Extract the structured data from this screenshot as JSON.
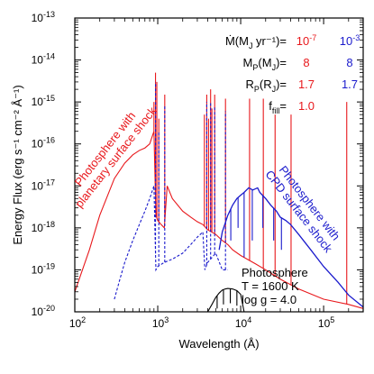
{
  "chart_data": {
    "type": "line",
    "title": "",
    "xlabel": "Wavelength (Å)",
    "ylabel": "Energy Flux (erg s⁻¹ cm⁻² Å⁻¹)",
    "xscale": "log",
    "yscale": "log",
    "xlim": [
      100,
      300000
    ],
    "ylim": [
      1e-20,
      1e-13
    ],
    "grid": false,
    "x_ticks": [
      {
        "value": 100,
        "mant": "10",
        "exp": "2"
      },
      {
        "value": 1000,
        "mant": "10",
        "exp": "3"
      },
      {
        "value": 10000,
        "mant": "10",
        "exp": "4"
      },
      {
        "value": 100000,
        "mant": "10",
        "exp": "5"
      }
    ],
    "y_ticks": [
      {
        "value": 1e-13,
        "mant": "10",
        "exp": "-13"
      },
      {
        "value": 1e-14,
        "mant": "10",
        "exp": "-14"
      },
      {
        "value": 1e-15,
        "mant": "10",
        "exp": "-15"
      },
      {
        "value": 1e-16,
        "mant": "10",
        "exp": "-16"
      },
      {
        "value": 1e-17,
        "mant": "10",
        "exp": "-17"
      },
      {
        "value": 1e-18,
        "mant": "10",
        "exp": "-18"
      },
      {
        "value": 1e-19,
        "mant": "10",
        "exp": "-19"
      },
      {
        "value": 1e-20,
        "mant": "10",
        "exp": "-20"
      }
    ],
    "series": [
      {
        "color": "#e8181c",
        "style": "solid",
        "x": [
          100,
          150,
          200,
          300,
          400,
          500,
          600,
          700,
          800,
          900,
          950,
          1000,
          1100,
          1200,
          1300,
          1500,
          2000,
          2500,
          3000,
          3500,
          4000,
          5000,
          6000,
          7000,
          8000,
          10000,
          15000,
          20000,
          30000,
          50000,
          100000,
          200000,
          300000
        ],
        "y": [
          3e-20,
          3e-19,
          2e-18,
          1.5e-17,
          3.5e-17,
          5.5e-17,
          7e-17,
          8e-17,
          1e-16,
          2e-16,
          2e-18,
          1.5e-18,
          1.2e-18,
          1e-18,
          1e-17,
          5e-18,
          2.5e-18,
          1.8e-18,
          1.4e-18,
          1.2e-18,
          9e-19,
          7e-19,
          5e-19,
          4e-19,
          3e-19,
          2.2e-19,
          1.4e-19,
          1e-19,
          6e-20,
          3.5e-20,
          2e-20,
          1.5e-20,
          1.2e-20
        ],
        "peaks": [
          {
            "x": 900,
            "y": 1e-15
          },
          {
            "x": 940,
            "y": 5e-15
          },
          {
            "x": 975,
            "y": 3e-15
          },
          {
            "x": 1030,
            "y": 4e-16
          },
          {
            "x": 1215,
            "y": 1.5e-15
          },
          {
            "x": 3650,
            "y": 5e-16
          },
          {
            "x": 3900,
            "y": 1.5e-15
          },
          {
            "x": 4100,
            "y": 4e-16
          },
          {
            "x": 4340,
            "y": 2e-15
          },
          {
            "x": 4500,
            "y": 7e-16
          },
          {
            "x": 4860,
            "y": 1.5e-15
          },
          {
            "x": 6560,
            "y": 1.2e-15
          },
          {
            "x": 12800,
            "y": 1.2e-15
          },
          {
            "x": 18750,
            "y": 1.2e-15
          },
          {
            "x": 26000,
            "y": 5e-16
          },
          {
            "x": 40500,
            "y": 5e-16
          },
          {
            "x": 190000,
            "y": 1e-15
          }
        ]
      },
      {
        "color": "#1a1acc",
        "style": "dashed",
        "x": [
          300,
          350,
          400,
          500,
          600,
          700,
          800,
          900,
          950,
          1000,
          1200,
          1500,
          2000,
          2500,
          3000,
          3500,
          3700,
          4000,
          5000,
          6000,
          7000
        ],
        "y": [
          2e-20,
          6e-20,
          1.5e-19,
          5e-19,
          1.2e-18,
          2.5e-18,
          5e-18,
          1e-17,
          1e-19,
          1.2e-19,
          1.5e-19,
          1.8e-19,
          2.5e-19,
          4e-19,
          6e-19,
          8e-19,
          1e-19,
          1.5e-19,
          2.5e-19,
          1e-19,
          1e-19
        ],
        "peaks": [
          {
            "x": 940,
            "y": 3e-15
          },
          {
            "x": 1030,
            "y": 2e-16
          },
          {
            "x": 1215,
            "y": 8e-16
          },
          {
            "x": 3900,
            "y": 1e-15
          },
          {
            "x": 4340,
            "y": 1e-15
          },
          {
            "x": 4860,
            "y": 8e-16
          },
          {
            "x": 6560,
            "y": 6e-16
          }
        ]
      },
      {
        "color": "#1a1acc",
        "style": "solid",
        "x": [
          5500,
          6000,
          7000,
          8000,
          9000,
          10000,
          11000,
          12500,
          14000,
          16000,
          17000,
          20000,
          23000,
          27000,
          30000,
          35000,
          40000,
          50000,
          70000,
          100000,
          150000,
          200000,
          300000
        ],
        "y": [
          3e-19,
          8e-19,
          2e-18,
          3.5e-18,
          5e-18,
          6e-18,
          7e-18,
          9e-18,
          8e-18,
          9e-18,
          7e-18,
          5e-18,
          3.5e-18,
          2.5e-18,
          1.8e-18,
          1.5e-18,
          1.2e-18,
          7e-19,
          3e-19,
          1.2e-19,
          5e-20,
          2.5e-20,
          1.3e-20
        ],
        "absorption": [
          {
            "x": 7600,
            "y": 5e-19
          },
          {
            "x": 9300,
            "y": 1e-18
          },
          {
            "x": 11000,
            "y": 2e-19
          },
          {
            "x": 13800,
            "y": 5e-19
          },
          {
            "x": 18500,
            "y": 1e-18
          },
          {
            "x": 25000,
            "y": 5e-19
          },
          {
            "x": 31000,
            "y": 3e-19
          }
        ]
      },
      {
        "color": "#000000",
        "style": "solid",
        "x": [
          4000,
          4500,
          5000,
          5500,
          6000,
          6500,
          7000,
          8000,
          9000,
          10000,
          11000
        ],
        "y": [
          1e-20,
          1.5e-20,
          2.2e-20,
          2.8e-20,
          3.3e-20,
          3.5e-20,
          3.6e-20,
          3.5e-20,
          3.2e-20,
          2.6e-20,
          1e-20
        ],
        "absorption": [
          {
            "x": 5200,
            "y": 1.2e-20
          },
          {
            "x": 6200,
            "y": 1.5e-20
          },
          {
            "x": 7500,
            "y": 1.6e-20
          },
          {
            "x": 9000,
            "y": 1.4e-20
          }
        ]
      }
    ],
    "annotations": [
      {
        "id": "planetary",
        "lines": [
          "Photosphere with",
          "planetary surface shock"
        ],
        "color": "#e8181c"
      },
      {
        "id": "cpd",
        "lines": [
          "Photosphere with",
          "CPD surface shock"
        ],
        "color": "#1a1acc"
      },
      {
        "id": "photosphere",
        "lines": [
          "Photosphere",
          "T = 1600 K",
          "log g = 4.0"
        ],
        "color": "#000000"
      }
    ],
    "legend": {
      "position": "top-right",
      "rows": [
        {
          "label": "Ṁ(M",
          "sub": "J",
          "tail": " yr⁻¹)=",
          "red": "10",
          "red_exp": "-7",
          "blue": "10",
          "blue_exp": "-3"
        },
        {
          "label": "M",
          "sub": "P",
          "tail": "(M",
          "sub2": "J",
          "tail2": ")=",
          "red": "8",
          "blue": "8"
        },
        {
          "label": "R",
          "sub": "P",
          "tail": "(R",
          "sub2": "J",
          "tail2": ")=",
          "red": "1.7",
          "blue": "1.7"
        },
        {
          "label": "f",
          "sub": "fill",
          "tail": "=",
          "red": "1.0",
          "blue": ""
        }
      ]
    }
  }
}
